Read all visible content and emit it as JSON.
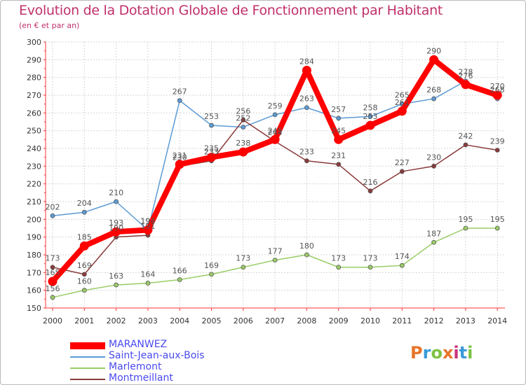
{
  "header": {
    "title": "Evolution de la Dotation Globale de Fonctionnement par Habitant",
    "subtitle": "(en € et par an)"
  },
  "brand": {
    "text": "Proxiti"
  },
  "chart_data": {
    "type": "line",
    "x": [
      "2000",
      "2001",
      "2002",
      "2003",
      "2004",
      "2005",
      "2006",
      "2007",
      "2008",
      "2009",
      "2010",
      "2011",
      "2012",
      "2013",
      "2014"
    ],
    "ylim": [
      150,
      300
    ],
    "yticks": [
      150,
      160,
      170,
      180,
      190,
      200,
      210,
      220,
      230,
      240,
      250,
      260,
      270,
      280,
      290,
      300
    ],
    "grid": true,
    "legend_position": "bottom-left",
    "series": [
      {
        "name": "Saint-Jean-aux-Bois",
        "color": "#5b9bd5",
        "values": [
          202,
          204,
          210,
          194,
          267,
          253,
          252,
          259,
          263,
          257,
          258,
          265,
          268,
          278,
          268
        ],
        "labels": [
          "202",
          "204",
          "210",
          "194",
          "267",
          "253",
          "252",
          "259",
          "263",
          "257",
          "258",
          "265",
          "268",
          "278",
          "268"
        ]
      },
      {
        "name": "Marlemont",
        "color": "#99cc66",
        "values": [
          156,
          160,
          163,
          164,
          166,
          169,
          173,
          177,
          180,
          173,
          173,
          174,
          187,
          195,
          195
        ],
        "labels": [
          "156",
          "160",
          "163",
          "164",
          "166",
          "169",
          "173",
          "177",
          "180",
          "173",
          "173",
          "174",
          "187",
          "195",
          "195"
        ]
      },
      {
        "name": "Montmeillant",
        "color": "#8b3a3a",
        "values": [
          173,
          169,
          190,
          191,
          230,
          233,
          256,
          244,
          233,
          231,
          216,
          227,
          230,
          242,
          239
        ],
        "labels": [
          "173",
          "169",
          "190",
          "191",
          "230",
          "233",
          "256",
          "244",
          "233",
          "231",
          "216",
          "227",
          "230",
          "242",
          "239"
        ]
      },
      {
        "name": "MARANWEZ",
        "color": "#ff0000",
        "values": [
          165,
          185,
          193,
          194,
          231,
          235,
          238,
          245,
          284,
          245,
          253,
          261,
          290,
          276,
          270
        ],
        "labels": [
          "165",
          "185",
          "193",
          "194",
          "231",
          "235",
          "238",
          "245",
          "284",
          "245",
          "253",
          "261",
          "290",
          "276",
          "270"
        ]
      }
    ]
  }
}
